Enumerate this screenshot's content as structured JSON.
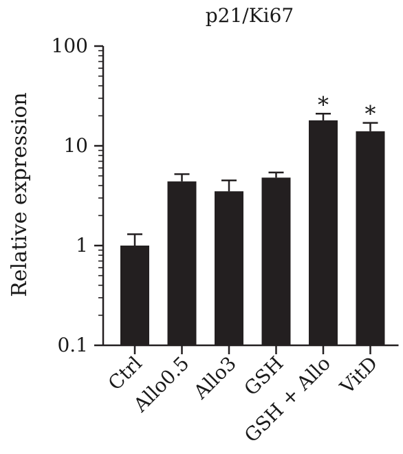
{
  "chart_data": {
    "type": "bar",
    "title": "p21/Ki67",
    "xlabel": "",
    "ylabel": "Relative expression",
    "yscale": "log",
    "ylim": [
      0.1,
      100
    ],
    "yticks": [
      0.1,
      1,
      10,
      100
    ],
    "ytick_labels": [
      "0.1",
      "1",
      "10",
      "100"
    ],
    "categories": [
      "Ctrl",
      "Allo0.5",
      "Allo3",
      "GSH",
      "GSH + Allo",
      "VitD"
    ],
    "values": [
      1.0,
      4.4,
      3.5,
      4.8,
      18.0,
      14.0
    ],
    "error_upper": [
      1.3,
      5.2,
      4.5,
      5.4,
      21.0,
      17.0
    ],
    "annotations": [
      "",
      "",
      "",
      "",
      "*",
      "*"
    ],
    "bar_color": "#231f20",
    "grid": false,
    "legend": "none"
  }
}
